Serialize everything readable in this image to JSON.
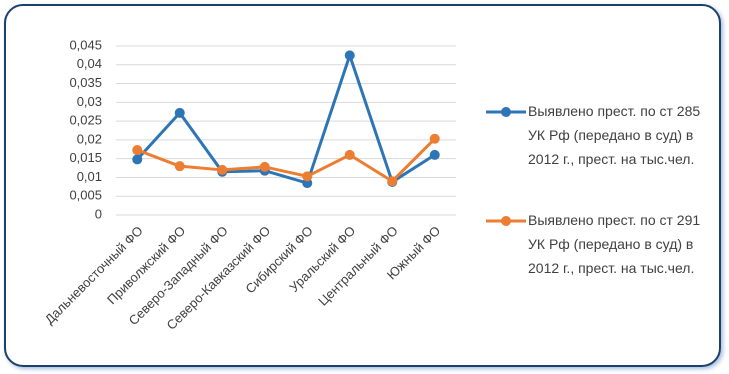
{
  "chart_data": {
    "type": "line",
    "categories": [
      "Дальневосточный ФО",
      "Приволжский ФО",
      "Северо-Западный ФО",
      "Северо-Кавказский ФО",
      "Сибирский ФО",
      "Уральский ФО",
      "Центральный ФО",
      "Южный ФО"
    ],
    "series": [
      {
        "name": "Выявлено прест. по ст 285 УК Рф (передано в суд) в 2012 г., прест. на тыс.чел.",
        "color": "#2e75b6",
        "values": [
          0.0148,
          0.0272,
          0.0115,
          0.0118,
          0.0085,
          0.0425,
          0.0088,
          0.016
        ]
      },
      {
        "name": "Выявлено прест. по ст 291 УК Рф (передано в суд) в 2012 г., прест. на тыс.чел.",
        "color": "#ed7d31",
        "values": [
          0.0173,
          0.013,
          0.012,
          0.0128,
          0.0103,
          0.016,
          0.009,
          0.0203
        ]
      }
    ],
    "ylim": [
      0,
      0.045
    ],
    "yticks": [
      0,
      {
        "value": 0.005,
        "label": "0,005"
      },
      {
        "value": 0.01,
        "label": "0,01"
      },
      {
        "value": 0.015,
        "label": "0,015"
      },
      {
        "value": 0.02,
        "label": "0,02"
      },
      {
        "value": 0.025,
        "label": "0,025"
      },
      {
        "value": 0.03,
        "label": "0,03"
      },
      {
        "value": 0.035,
        "label": "0,035"
      },
      {
        "value": 0.04,
        "label": "0,04"
      },
      {
        "value": 0.045,
        "label": "0,045"
      }
    ],
    "grid": true,
    "legend": "right"
  }
}
